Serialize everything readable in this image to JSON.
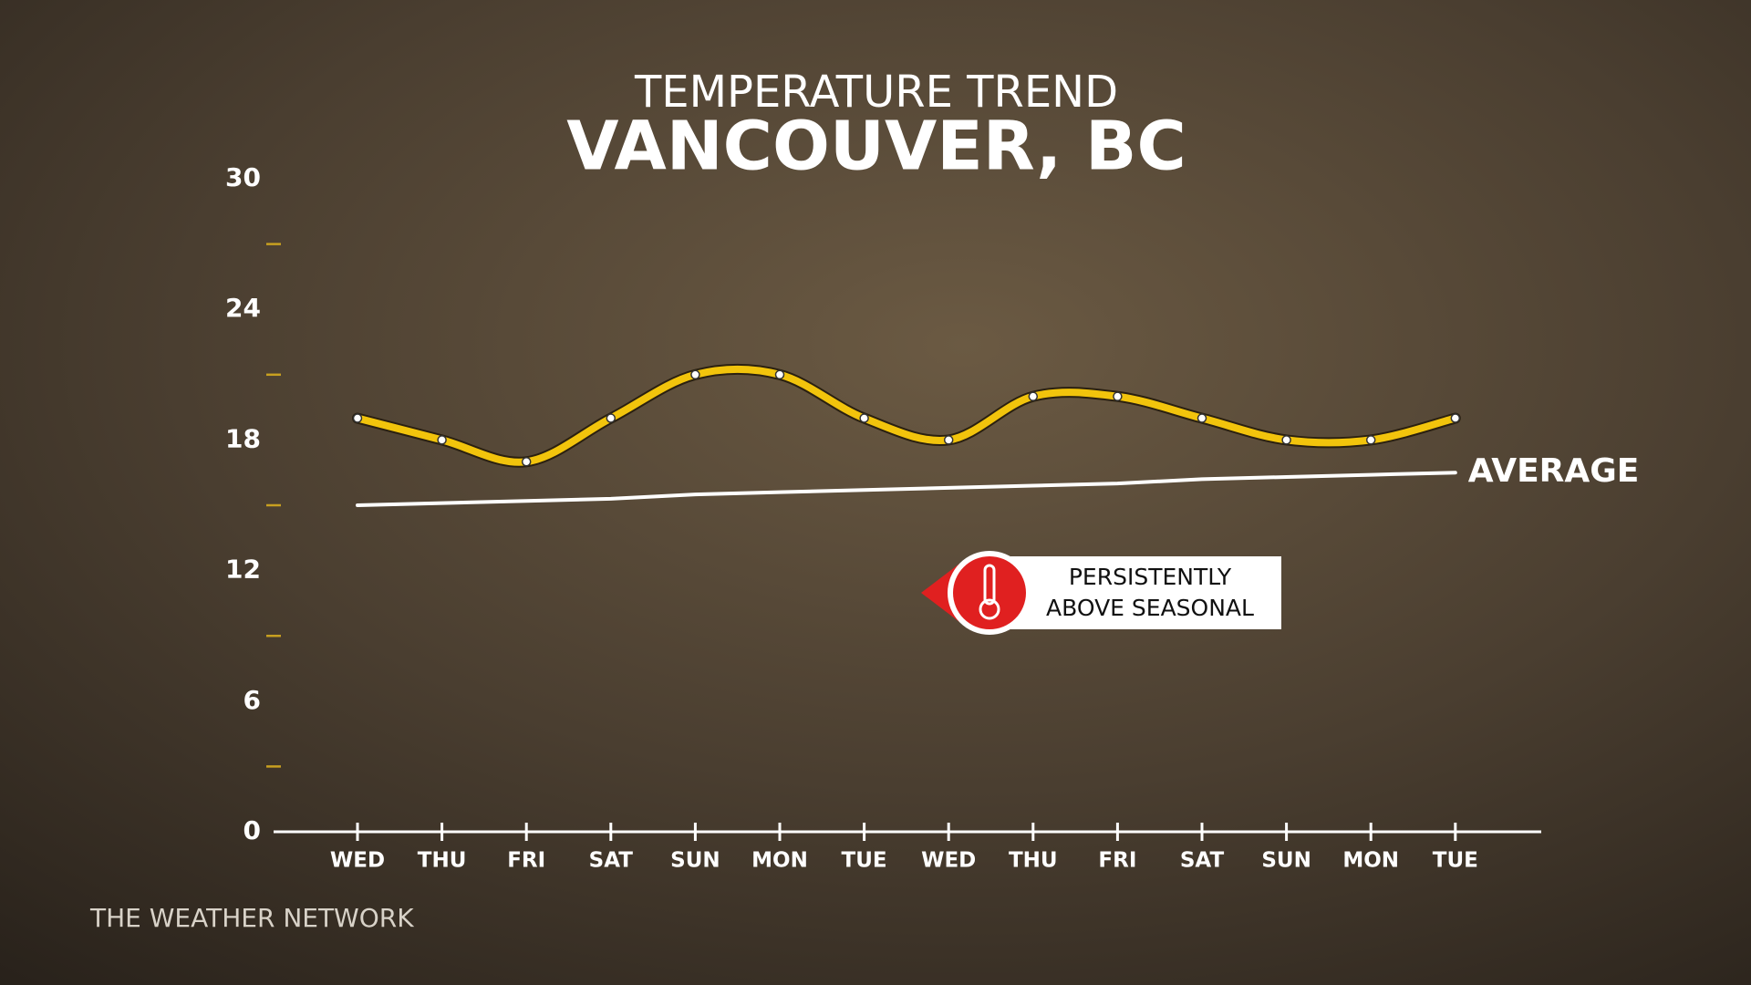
{
  "chart_data": {
    "type": "line",
    "title": "TEMPERATURE TREND",
    "subtitle": "VANCOUVER, BC",
    "categories": [
      "WED",
      "THU",
      "FRI",
      "SAT",
      "SUN",
      "MON",
      "TUE",
      "WED",
      "THU",
      "FRI",
      "SAT",
      "SUN",
      "MON",
      "TUE"
    ],
    "series": [
      {
        "color": "#f2c40c",
        "values": [
          19,
          18,
          17,
          19,
          21,
          21,
          19,
          18,
          20,
          20,
          19,
          18,
          18,
          19
        ]
      },
      {
        "name": "AVERAGE",
        "color": "#ffffff",
        "values": [
          15.0,
          15.1,
          15.2,
          15.3,
          15.5,
          15.6,
          15.7,
          15.8,
          15.9,
          16.0,
          16.2,
          16.3,
          16.4,
          16.5
        ]
      }
    ],
    "ylim": [
      0,
      30
    ],
    "yticks": [
      0,
      6,
      12,
      18,
      24,
      30
    ],
    "yticks_minor": [
      3,
      9,
      15,
      21,
      27
    ],
    "annotation": [
      "PERSISTENTLY",
      "ABOVE SEASONAL"
    ],
    "source": "THE WEATHER NETWORK"
  }
}
